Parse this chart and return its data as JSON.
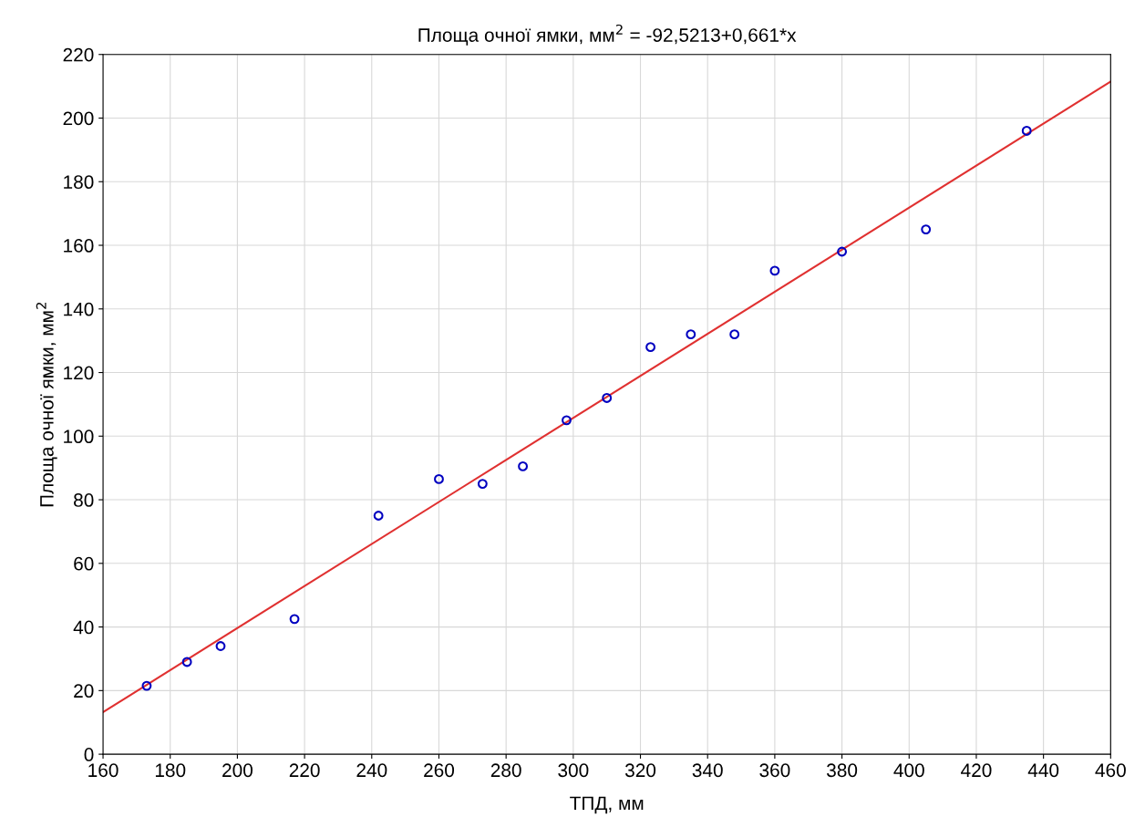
{
  "chart_data": {
    "type": "scatter",
    "title": "Площа очної ямки, мм$^{2}$ = -92,5213+0,661*x",
    "xlabel": "ТПД, мм",
    "ylabel": "Площа очної ямки, мм$^{2}$",
    "series": [
      {
        "color": "#0000c0",
        "marker": "circle",
        "x": [
          173,
          185,
          195,
          217,
          242,
          260,
          273,
          285,
          298,
          310,
          323,
          335,
          348,
          360,
          380,
          405,
          435
        ],
        "values": [
          21.5,
          29,
          34,
          42.5,
          75,
          86.5,
          85,
          90.5,
          105,
          112,
          128,
          132,
          132,
          152,
          158,
          165,
          196
        ]
      },
      {
        "type": "line",
        "color": "#e03030",
        "marker": "none",
        "line_style": "solid",
        "x": [
          160,
          460
        ],
        "values": [
          13.2,
          211.5
        ]
      }
    ],
    "xlim": [
      160,
      460
    ],
    "xticks": [
      160,
      180,
      200,
      220,
      240,
      260,
      280,
      300,
      320,
      340,
      360,
      380,
      400,
      420,
      440,
      460
    ],
    "ylim": [
      0,
      220
    ],
    "yticks": [
      0,
      20,
      40,
      60,
      80,
      100,
      120,
      140,
      160,
      180,
      200,
      220
    ],
    "grid": true,
    "legend": false
  }
}
